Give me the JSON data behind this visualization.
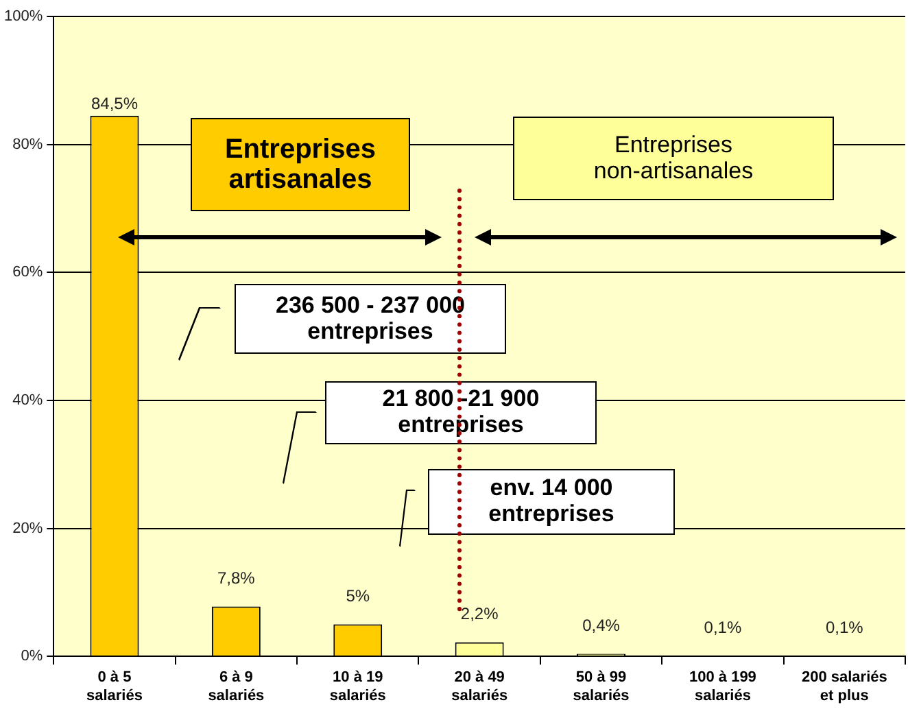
{
  "chart_data": {
    "type": "bar",
    "categories": [
      "0 à 5\nsalariés",
      "6 à 9\nsalariés",
      "10 à 19\nsalariés",
      "20 à 49\nsalariés",
      "50 à 99\nsalariés",
      "100 à 199\nsalariés",
      "200 salariés\net plus"
    ],
    "values": [
      84.5,
      7.8,
      5,
      2.2,
      0.4,
      0.1,
      0.1
    ],
    "colors": [
      "#ffcc00",
      "#ffcc00",
      "#ffcc00",
      "#ffff99",
      "#ffff99",
      "#ffff99",
      "#ffff99"
    ],
    "value_labels": [
      "84,5%",
      "7,8%",
      "5%",
      "2,2%",
      "0,4%",
      "0,1%",
      "0,1%"
    ],
    "ylim": [
      0,
      100
    ],
    "yticks": [
      {
        "value": 0,
        "label": "0%"
      },
      {
        "value": 20,
        "label": "20%"
      },
      {
        "value": 40,
        "label": "40%"
      },
      {
        "value": 60,
        "label": "60%"
      },
      {
        "value": 80,
        "label": "80%"
      },
      {
        "value": 100,
        "label": "100%"
      }
    ],
    "grid": "y",
    "legend": false,
    "annotations": [
      "Entreprises\nartisanales",
      "Entreprises\nnon-artisanales",
      "236 500 - 237 000\nentreprises",
      "21 800 -21 900\nentreprises",
      "env. 14 000\nentreprises"
    ]
  }
}
